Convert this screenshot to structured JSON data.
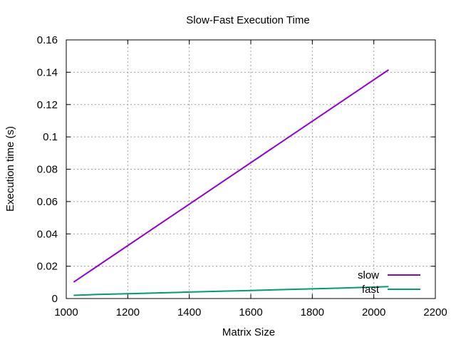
{
  "chart_data": {
    "type": "line",
    "title": "Slow-Fast Execution Time",
    "xlabel": "Matrix Size",
    "ylabel": "Execution time (s)",
    "xlim": [
      1000,
      2200
    ],
    "ylim": [
      0,
      0.16
    ],
    "x_ticks": [
      1000,
      1200,
      1400,
      1600,
      1800,
      2000,
      2200
    ],
    "x_tick_labels": [
      "1000",
      "1200",
      "1400",
      "1600",
      "1800",
      "2000",
      "2200"
    ],
    "y_ticks": [
      0,
      0.02,
      0.04,
      0.06,
      0.08,
      0.1,
      0.12,
      0.14,
      0.16
    ],
    "y_tick_labels": [
      "0",
      "0.02",
      "0.04",
      "0.06",
      "0.08",
      "0.1",
      "0.12",
      "0.14",
      "0.16"
    ],
    "grid": true,
    "legend_position": "bottom-right",
    "series": [
      {
        "name": "slow",
        "color": "#9400d3",
        "x": [
          1024,
          2048
        ],
        "y": [
          0.0102,
          0.1415
        ]
      },
      {
        "name": "fast",
        "color": "#009e73",
        "x": [
          1024,
          1100,
          1200,
          1300,
          1400,
          1500,
          1600,
          1700,
          1800,
          1900,
          2000,
          2048
        ],
        "y": [
          0.002,
          0.0025,
          0.003,
          0.0035,
          0.004,
          0.0045,
          0.005,
          0.0055,
          0.006,
          0.0065,
          0.0071,
          0.0074
        ]
      }
    ]
  }
}
